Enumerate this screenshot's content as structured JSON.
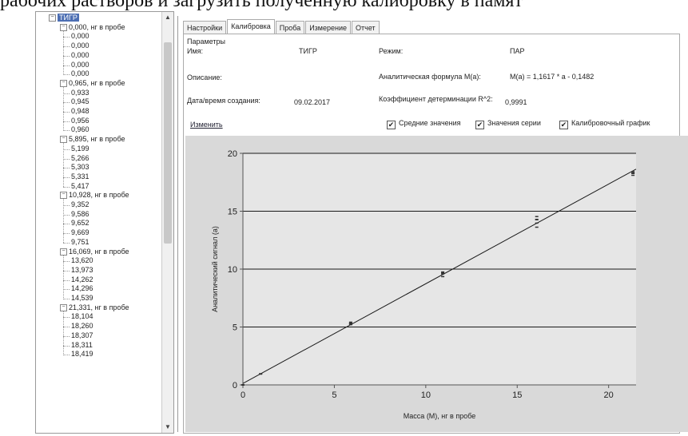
{
  "page_text": "рабочих растворов и загрузить полученную калибровку в памят",
  "tree": {
    "root": "ТИГР",
    "groups": [
      {
        "label": "0,000, нг в пробе",
        "items": [
          "0,000",
          "0,000",
          "0,000",
          "0,000",
          "0,000"
        ]
      },
      {
        "label": "0,965, нг в пробе",
        "items": [
          "0,933",
          "0,945",
          "0,948",
          "0,956",
          "0,960"
        ]
      },
      {
        "label": "5,895, нг в пробе",
        "items": [
          "5,199",
          "5,266",
          "5,303",
          "5,331",
          "5,417"
        ]
      },
      {
        "label": "10,928, нг в пробе",
        "items": [
          "9,352",
          "9,586",
          "9,652",
          "9,669",
          "9,751"
        ]
      },
      {
        "label": "16,069, нг в пробе",
        "items": [
          "13,620",
          "13,973",
          "14,262",
          "14,296",
          "14,539"
        ]
      },
      {
        "label": "21,331, нг в пробе",
        "items": [
          "18,104",
          "18,260",
          "18,307",
          "18,311",
          "18,419"
        ]
      }
    ]
  },
  "tabs": [
    "Настройки",
    "Калибровка",
    "Проба",
    "Измерение",
    "Отчет"
  ],
  "active_tab": 1,
  "params": {
    "section": "Параметры",
    "name_label": "Имя:",
    "name_value": "ТИГР",
    "desc_label": "Описание:",
    "date_label": "Дата/время создания:",
    "date_value": "09.02.2017",
    "edit_link": "Изменить",
    "mode_label": "Режим:",
    "mode_value": "ПАР",
    "formula_label": "Аналитическая формула M(a):",
    "formula_value": "M(a) = 1,1617 * a - 0,1482",
    "r2_label": "Коэффициент детерминации R^2:",
    "r2_value": "0,9991"
  },
  "checkboxes": [
    {
      "label": "Средние значения",
      "checked": true
    },
    {
      "label": "Значения серии",
      "checked": true
    },
    {
      "label": "Калибровочный график",
      "checked": true
    }
  ],
  "chart_data": {
    "type": "scatter",
    "xlabel": "Масса (M), нг в пробе",
    "ylabel": "Аналитический сигнал (a)",
    "xlim": [
      0,
      21.5
    ],
    "ylim": [
      0,
      20
    ],
    "xticks": [
      0,
      5,
      10,
      15,
      20
    ],
    "yticks": [
      0,
      5,
      10,
      15,
      20
    ],
    "grid": "horizontal",
    "fit_line": {
      "slope": 1.1617,
      "intercept": -0.1482,
      "equation": "M(a) = 1,1617 * a - 0,1482"
    },
    "series": [
      {
        "x": [
          0,
          0,
          0,
          0,
          0
        ],
        "y": [
          0,
          0,
          0,
          0,
          0
        ]
      },
      {
        "x": [
          0.965,
          0.965,
          0.965,
          0.965,
          0.965
        ],
        "y": [
          0.933,
          0.945,
          0.948,
          0.956,
          0.96
        ]
      },
      {
        "x": [
          5.895,
          5.895,
          5.895,
          5.895,
          5.895
        ],
        "y": [
          5.199,
          5.266,
          5.303,
          5.331,
          5.417
        ]
      },
      {
        "x": [
          10.928,
          10.928,
          10.928,
          10.928,
          10.928
        ],
        "y": [
          9.352,
          9.586,
          9.652,
          9.669,
          9.751
        ]
      },
      {
        "x": [
          16.069,
          16.069,
          16.069,
          16.069,
          16.069
        ],
        "y": [
          13.62,
          13.973,
          14.262,
          14.296,
          14.539
        ]
      },
      {
        "x": [
          21.331,
          21.331,
          21.331,
          21.331,
          21.331
        ],
        "y": [
          18.104,
          18.26,
          18.307,
          18.311,
          18.419
        ]
      }
    ],
    "line_color": "#1a1a1a",
    "grid_color": "#1a1a1a",
    "plot_bg": "#e6e6e6"
  }
}
